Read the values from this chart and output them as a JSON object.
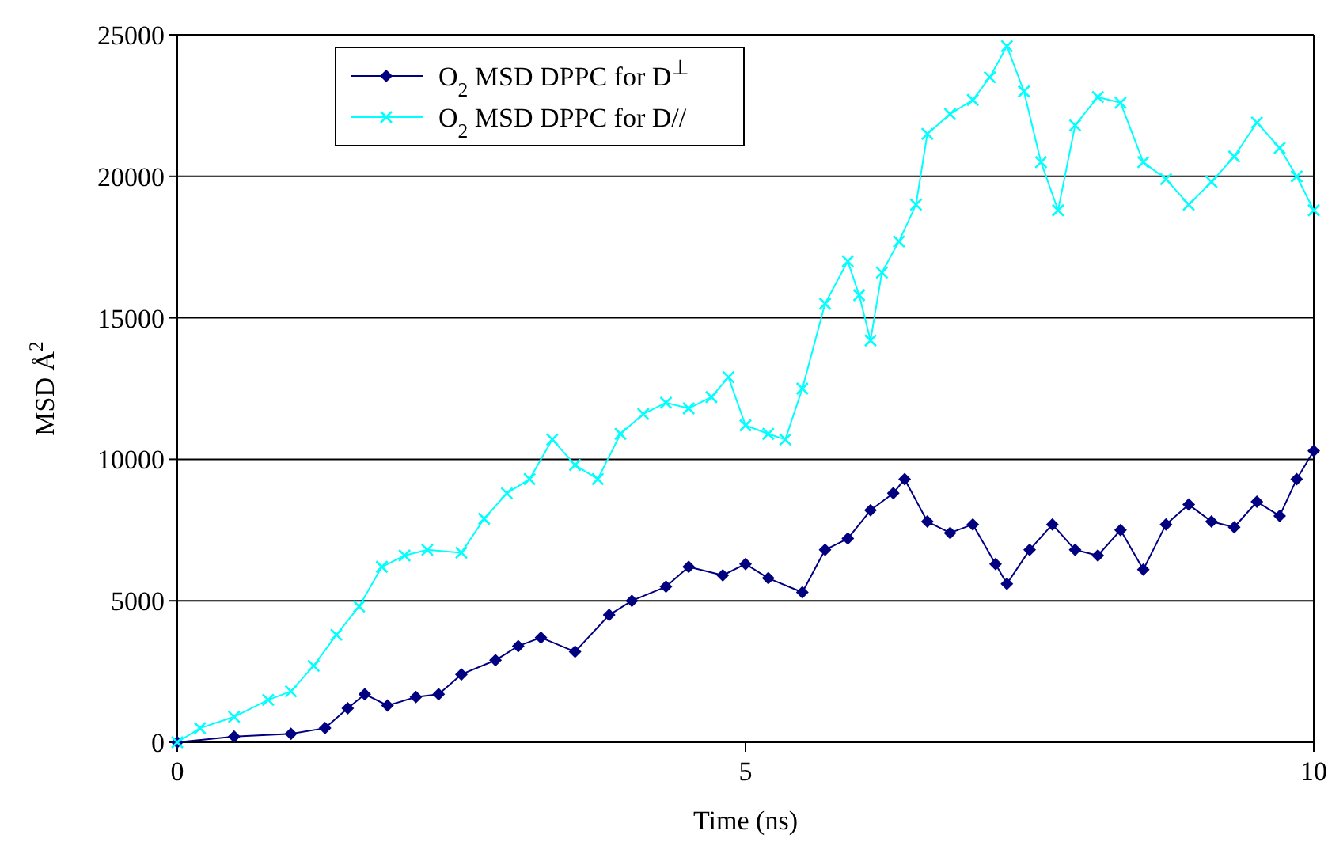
{
  "chart_data": {
    "type": "line",
    "xlabel": "Time (ns)",
    "ylabel": "MSD Å$^{2}$",
    "xlim": [
      0,
      10
    ],
    "xticks": [
      0,
      5,
      10
    ],
    "ylim": [
      0,
      25000
    ],
    "yticks": [
      0,
      5000,
      10000,
      15000,
      20000,
      25000
    ],
    "grid": "y",
    "legend": "top left",
    "line_style": "solid",
    "series": [
      {
        "name": "O$_{2}$ MSD DPPC for D$^{⊥}$",
        "color": "#000080",
        "marker": "diamond",
        "x": [
          0,
          0.5,
          1.0,
          1.3,
          1.5,
          1.65,
          1.85,
          2.1,
          2.3,
          2.5,
          2.8,
          3.0,
          3.2,
          3.5,
          3.8,
          4.0,
          4.3,
          4.5,
          4.8,
          5.0,
          5.2,
          5.5,
          5.7,
          5.9,
          6.1,
          6.3,
          6.4,
          6.6,
          6.8,
          7.0,
          7.2,
          7.3,
          7.5,
          7.7,
          7.9,
          8.1,
          8.3,
          8.5,
          8.7,
          8.9,
          9.1,
          9.3,
          9.5,
          9.7,
          9.85,
          10
        ],
        "values": [
          0,
          200,
          300,
          500,
          1200,
          1700,
          1300,
          1600,
          1700,
          2400,
          2900,
          3400,
          3700,
          3200,
          4500,
          5000,
          5500,
          6200,
          5900,
          6300,
          5800,
          5300,
          6800,
          7200,
          8200,
          8800,
          9300,
          7800,
          7400,
          7700,
          6300,
          5600,
          6800,
          7700,
          6800,
          6600,
          7500,
          6100,
          7700,
          8400,
          7800,
          7600,
          8500,
          8000,
          9300,
          10300
        ]
      },
      {
        "name": "O$_{2}$ MSD DPPC for D//",
        "color": "#00ffff",
        "marker": "cross",
        "x": [
          0,
          0.2,
          0.5,
          0.8,
          1.0,
          1.2,
          1.4,
          1.6,
          1.8,
          2.0,
          2.2,
          2.5,
          2.7,
          2.9,
          3.1,
          3.3,
          3.5,
          3.7,
          3.9,
          4.1,
          4.3,
          4.5,
          4.7,
          4.85,
          5.0,
          5.2,
          5.35,
          5.5,
          5.7,
          5.9,
          6.0,
          6.1,
          6.2,
          6.35,
          6.5,
          6.6,
          6.8,
          7.0,
          7.15,
          7.3,
          7.45,
          7.6,
          7.75,
          7.9,
          8.1,
          8.3,
          8.5,
          8.7,
          8.9,
          9.1,
          9.3,
          9.5,
          9.7,
          9.85,
          10
        ],
        "values": [
          0,
          500,
          900,
          1500,
          1800,
          2700,
          3800,
          4800,
          6200,
          6600,
          6800,
          6700,
          7900,
          8800,
          9300,
          10700,
          9800,
          9300,
          10900,
          11600,
          12000,
          11800,
          12200,
          12900,
          11200,
          10900,
          10700,
          12500,
          15500,
          17000,
          15800,
          14200,
          16600,
          17700,
          19000,
          21500,
          22200,
          22700,
          23500,
          24600,
          23000,
          20500,
          18800,
          21800,
          22800,
          22600,
          20500,
          19900,
          19000,
          19800,
          20700,
          21900,
          21000,
          20000,
          18800
        ]
      }
    ]
  }
}
